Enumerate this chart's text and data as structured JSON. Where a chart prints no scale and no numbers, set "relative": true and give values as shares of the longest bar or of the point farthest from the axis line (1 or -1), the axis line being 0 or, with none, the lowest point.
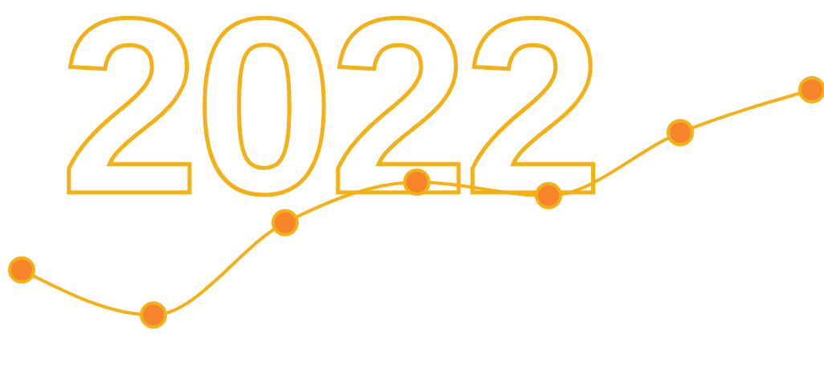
{
  "chart_data": {
    "type": "line",
    "title": "2022",
    "relative": true,
    "categories": [
      null,
      null,
      null,
      null,
      null,
      null,
      null
    ],
    "series": [
      {
        "color": "#f5b015",
        "values": [
          0.2,
          0,
          0.41,
          0.59,
          0.53,
          0.81,
          1
        ]
      }
    ],
    "marker": "circle",
    "line_style": "solid"
  }
}
